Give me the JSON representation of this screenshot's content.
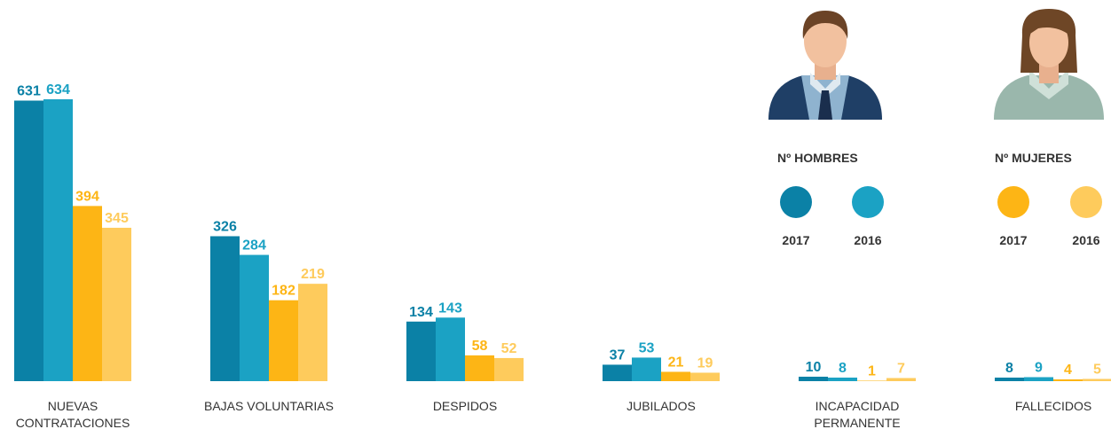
{
  "chart_data": {
    "type": "bar",
    "categories": [
      "NUEVAS CONTRATACIONES",
      "BAJAS VOLUNTARIAS",
      "DESPIDOS",
      "JUBILADOS",
      "INCAPACIDAD PERMANENTE",
      "FALLECIDOS"
    ],
    "groups": [
      {
        "name": "Nº HOMBRES",
        "series": [
          {
            "name": "2017",
            "color": "#0b81a6",
            "values": [
              631,
              326,
              134,
              37,
              10,
              8
            ]
          },
          {
            "name": "2016",
            "color": "#1ba2c4",
            "values": [
              634,
              284,
              143,
              53,
              8,
              9
            ]
          }
        ]
      },
      {
        "name": "Nº MUJERES",
        "series": [
          {
            "name": "2017",
            "color": "#fdb515",
            "values": [
              394,
              182,
              58,
              21,
              1,
              4
            ]
          },
          {
            "name": "2016",
            "color": "#fecb5c",
            "values": [
              345,
              219,
              52,
              19,
              7,
              5
            ]
          }
        ]
      }
    ]
  }
}
